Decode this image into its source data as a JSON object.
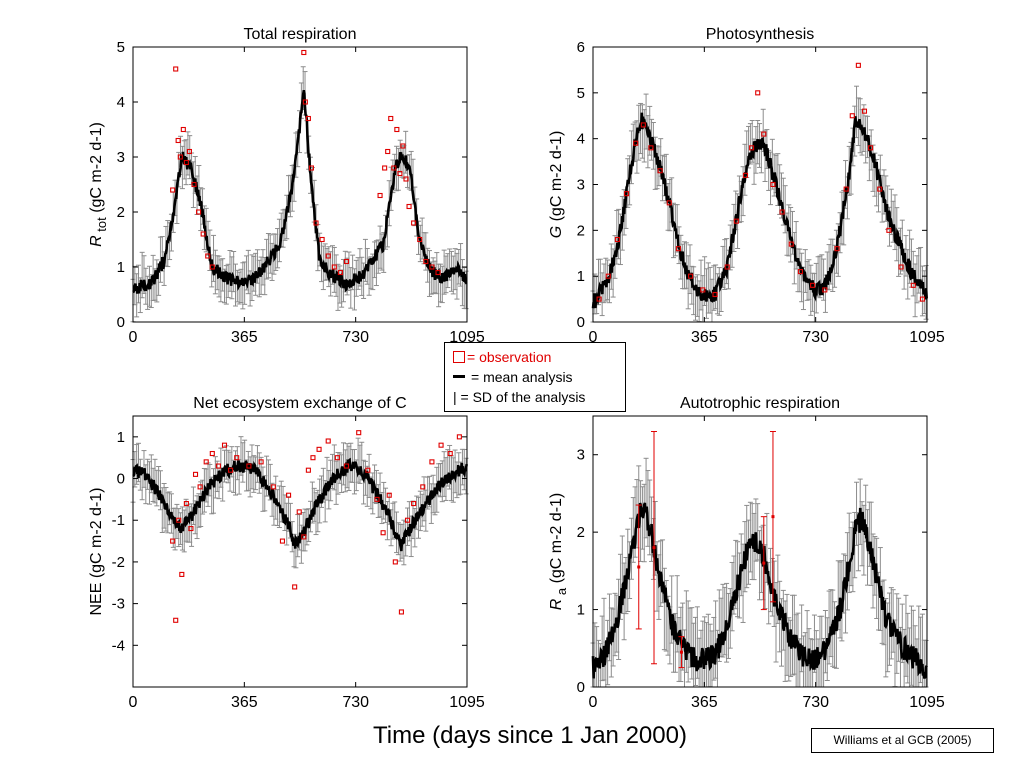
{
  "colors": {
    "observation": "#e00000",
    "analysis": "#000000",
    "sd": "#8c8c8c"
  },
  "legend": {
    "observation": "= observation",
    "mean": "= mean analysis",
    "sd": "| = SD of the analysis"
  },
  "x_title": "Time (days since 1 Jan 2000)",
  "credit": "Williams et al GCB (2005)",
  "chart_data": [
    {
      "type": "line",
      "title": "Total respiration",
      "ylabel_main": "R",
      "ylabel_sub": "tot",
      "ylabel_unit": "(gC m-2 d-1)",
      "xlim": [
        0,
        1095
      ],
      "ylim": [
        0,
        5
      ],
      "xticks": [
        0,
        365,
        730,
        1095
      ],
      "yticks": [
        0,
        1,
        2,
        3,
        4,
        5
      ],
      "x": [
        0,
        60,
        100,
        130,
        160,
        190,
        220,
        260,
        300,
        365,
        420,
        480,
        520,
        540,
        560,
        580,
        610,
        640,
        700,
        760,
        820,
        860,
        880,
        910,
        940,
        980,
        1020,
        1060,
        1095
      ],
      "mean": [
        0.6,
        0.7,
        1.1,
        1.8,
        3.0,
        2.8,
        2.2,
        1.0,
        0.8,
        0.7,
        0.9,
        1.4,
        2.4,
        3.2,
        4.3,
        2.8,
        1.2,
        0.9,
        0.7,
        0.9,
        1.4,
        2.8,
        3.1,
        2.7,
        1.5,
        0.9,
        0.8,
        1.0,
        0.7
      ],
      "sd": 0.35,
      "obs_x": [
        130,
        140,
        148,
        155,
        165,
        175,
        185,
        200,
        215,
        230,
        245,
        260,
        560,
        565,
        575,
        585,
        600,
        620,
        640,
        660,
        680,
        700,
        810,
        825,
        835,
        845,
        855,
        865,
        875,
        885,
        895,
        905,
        920,
        940,
        960,
        980,
        1000
      ],
      "obs_y": [
        2.4,
        4.6,
        3.3,
        3.0,
        3.5,
        2.9,
        3.1,
        2.5,
        2.0,
        1.6,
        1.2,
        1.0,
        4.9,
        4.0,
        3.7,
        2.8,
        1.8,
        1.5,
        1.2,
        1.0,
        0.9,
        1.1,
        2.3,
        2.8,
        3.1,
        3.7,
        2.8,
        3.5,
        2.7,
        3.2,
        2.6,
        2.1,
        1.8,
        1.5,
        1.1,
        1.0,
        0.9
      ]
    },
    {
      "type": "line",
      "title": "Photosynthesis",
      "ylabel_main": "G",
      "ylabel_sub": "",
      "ylabel_unit": "(gC m-2 d-1)",
      "xlim": [
        0,
        1095
      ],
      "ylim": [
        0,
        6
      ],
      "xticks": [
        0,
        365,
        730,
        1095
      ],
      "yticks": [
        0,
        1,
        2,
        3,
        4,
        5,
        6
      ],
      "x": [
        0,
        40,
        80,
        110,
        140,
        160,
        180,
        210,
        250,
        300,
        340,
        365,
        400,
        440,
        480,
        510,
        530,
        560,
        600,
        640,
        690,
        730,
        760,
        800,
        840,
        860,
        880,
        920,
        960,
        1020,
        1060,
        1095
      ],
      "mean": [
        0.4,
        0.8,
        1.6,
        2.8,
        4.0,
        4.4,
        4.1,
        3.6,
        2.6,
        1.2,
        0.7,
        0.6,
        0.6,
        1.2,
        2.6,
        3.6,
        3.8,
        3.9,
        3.0,
        2.0,
        1.0,
        0.7,
        0.8,
        1.6,
        3.2,
        4.4,
        4.3,
        3.6,
        2.5,
        1.4,
        0.9,
        0.6
      ],
      "sd": 0.5,
      "obs_x": [
        20,
        50,
        80,
        110,
        140,
        165,
        190,
        220,
        250,
        280,
        320,
        360,
        400,
        440,
        470,
        500,
        520,
        540,
        560,
        590,
        620,
        650,
        680,
        720,
        760,
        800,
        830,
        850,
        870,
        890,
        910,
        940,
        970,
        1010,
        1050,
        1080
      ],
      "obs_y": [
        0.5,
        1.0,
        1.8,
        2.8,
        3.9,
        4.3,
        3.8,
        3.3,
        2.6,
        1.6,
        1.0,
        0.7,
        0.6,
        1.2,
        2.2,
        3.2,
        3.8,
        5.0,
        4.1,
        3.0,
        2.4,
        1.7,
        1.1,
        0.8,
        0.7,
        1.6,
        2.9,
        4.5,
        5.6,
        4.6,
        3.8,
        2.9,
        2.0,
        1.2,
        0.8,
        0.5
      ]
    },
    {
      "type": "line",
      "title": "Net ecosystem exchange of C",
      "ylabel_main": "NEE",
      "ylabel_sub": "",
      "ylabel_unit": "(gC m-2 d-1)",
      "xlim": [
        0,
        1095
      ],
      "ylim": [
        -5,
        1.5
      ],
      "xticks": [
        0,
        365,
        730,
        1095
      ],
      "yticks": [
        -4,
        -3,
        -2,
        -1,
        0,
        1
      ],
      "x": [
        0,
        40,
        80,
        120,
        150,
        180,
        210,
        250,
        290,
        330,
        365,
        400,
        440,
        480,
        510,
        530,
        560,
        590,
        630,
        670,
        710,
        730,
        770,
        810,
        840,
        860,
        880,
        910,
        950,
        990,
        1030,
        1070,
        1095
      ],
      "mean": [
        0.2,
        0.1,
        -0.3,
        -0.8,
        -1.2,
        -1.0,
        -0.7,
        -0.2,
        0.1,
        0.3,
        0.3,
        0.2,
        -0.2,
        -0.7,
        -1.1,
        -1.6,
        -1.3,
        -0.8,
        -0.3,
        0.1,
        0.3,
        0.3,
        0.0,
        -0.5,
        -0.9,
        -1.3,
        -1.6,
        -1.2,
        -0.7,
        -0.3,
        0.0,
        0.2,
        0.3
      ],
      "sd": 0.45,
      "obs_x": [
        130,
        140,
        150,
        160,
        175,
        190,
        205,
        220,
        240,
        260,
        280,
        300,
        320,
        340,
        380,
        420,
        460,
        490,
        510,
        530,
        545,
        560,
        575,
        590,
        610,
        640,
        670,
        700,
        740,
        770,
        800,
        820,
        840,
        860,
        880,
        900,
        920,
        950,
        980,
        1010,
        1040,
        1070
      ],
      "obs_y": [
        -1.5,
        -3.4,
        -1.0,
        -2.3,
        -0.6,
        -1.2,
        0.1,
        -0.2,
        0.4,
        0.6,
        0.3,
        0.8,
        0.2,
        0.5,
        0.3,
        0.4,
        -0.2,
        -1.5,
        -0.4,
        -2.6,
        -0.8,
        -1.4,
        0.2,
        0.5,
        0.7,
        0.9,
        0.5,
        0.3,
        1.1,
        0.2,
        -0.5,
        -1.3,
        -0.4,
        -2.0,
        -3.2,
        -1.0,
        -0.6,
        -0.2,
        0.4,
        0.8,
        0.6,
        1.0
      ]
    },
    {
      "type": "line",
      "title": "Autotrophic respiration",
      "ylabel_main": "R",
      "ylabel_sub": "a",
      "ylabel_unit": "(gC m-2 d-1)",
      "xlim": [
        0,
        1095
      ],
      "ylim": [
        0,
        3.5
      ],
      "xticks": [
        0,
        365,
        730,
        1095
      ],
      "yticks": [
        0,
        1,
        2,
        3
      ],
      "x": [
        0,
        40,
        80,
        120,
        150,
        170,
        190,
        220,
        260,
        300,
        340,
        365,
        400,
        440,
        480,
        510,
        530,
        560,
        600,
        640,
        690,
        730,
        770,
        810,
        840,
        860,
        880,
        920,
        960,
        1000,
        1040,
        1080,
        1095
      ],
      "mean": [
        0.25,
        0.4,
        0.9,
        1.6,
        2.2,
        2.3,
        2.0,
        1.4,
        0.8,
        0.5,
        0.35,
        0.35,
        0.4,
        0.8,
        1.4,
        1.8,
        1.9,
        1.7,
        1.1,
        0.7,
        0.4,
        0.35,
        0.5,
        1.0,
        1.6,
        2.0,
        2.2,
        1.6,
        0.9,
        0.6,
        0.4,
        0.3,
        0.25
      ],
      "sd": 0.45,
      "obs_x": [
        150,
        200,
        560,
        590,
        290
      ],
      "obs_y": [
        1.55,
        1.8,
        1.6,
        2.2,
        0.45
      ],
      "obs_err": [
        0.8,
        1.5,
        0.6,
        1.1,
        0.2
      ]
    }
  ]
}
